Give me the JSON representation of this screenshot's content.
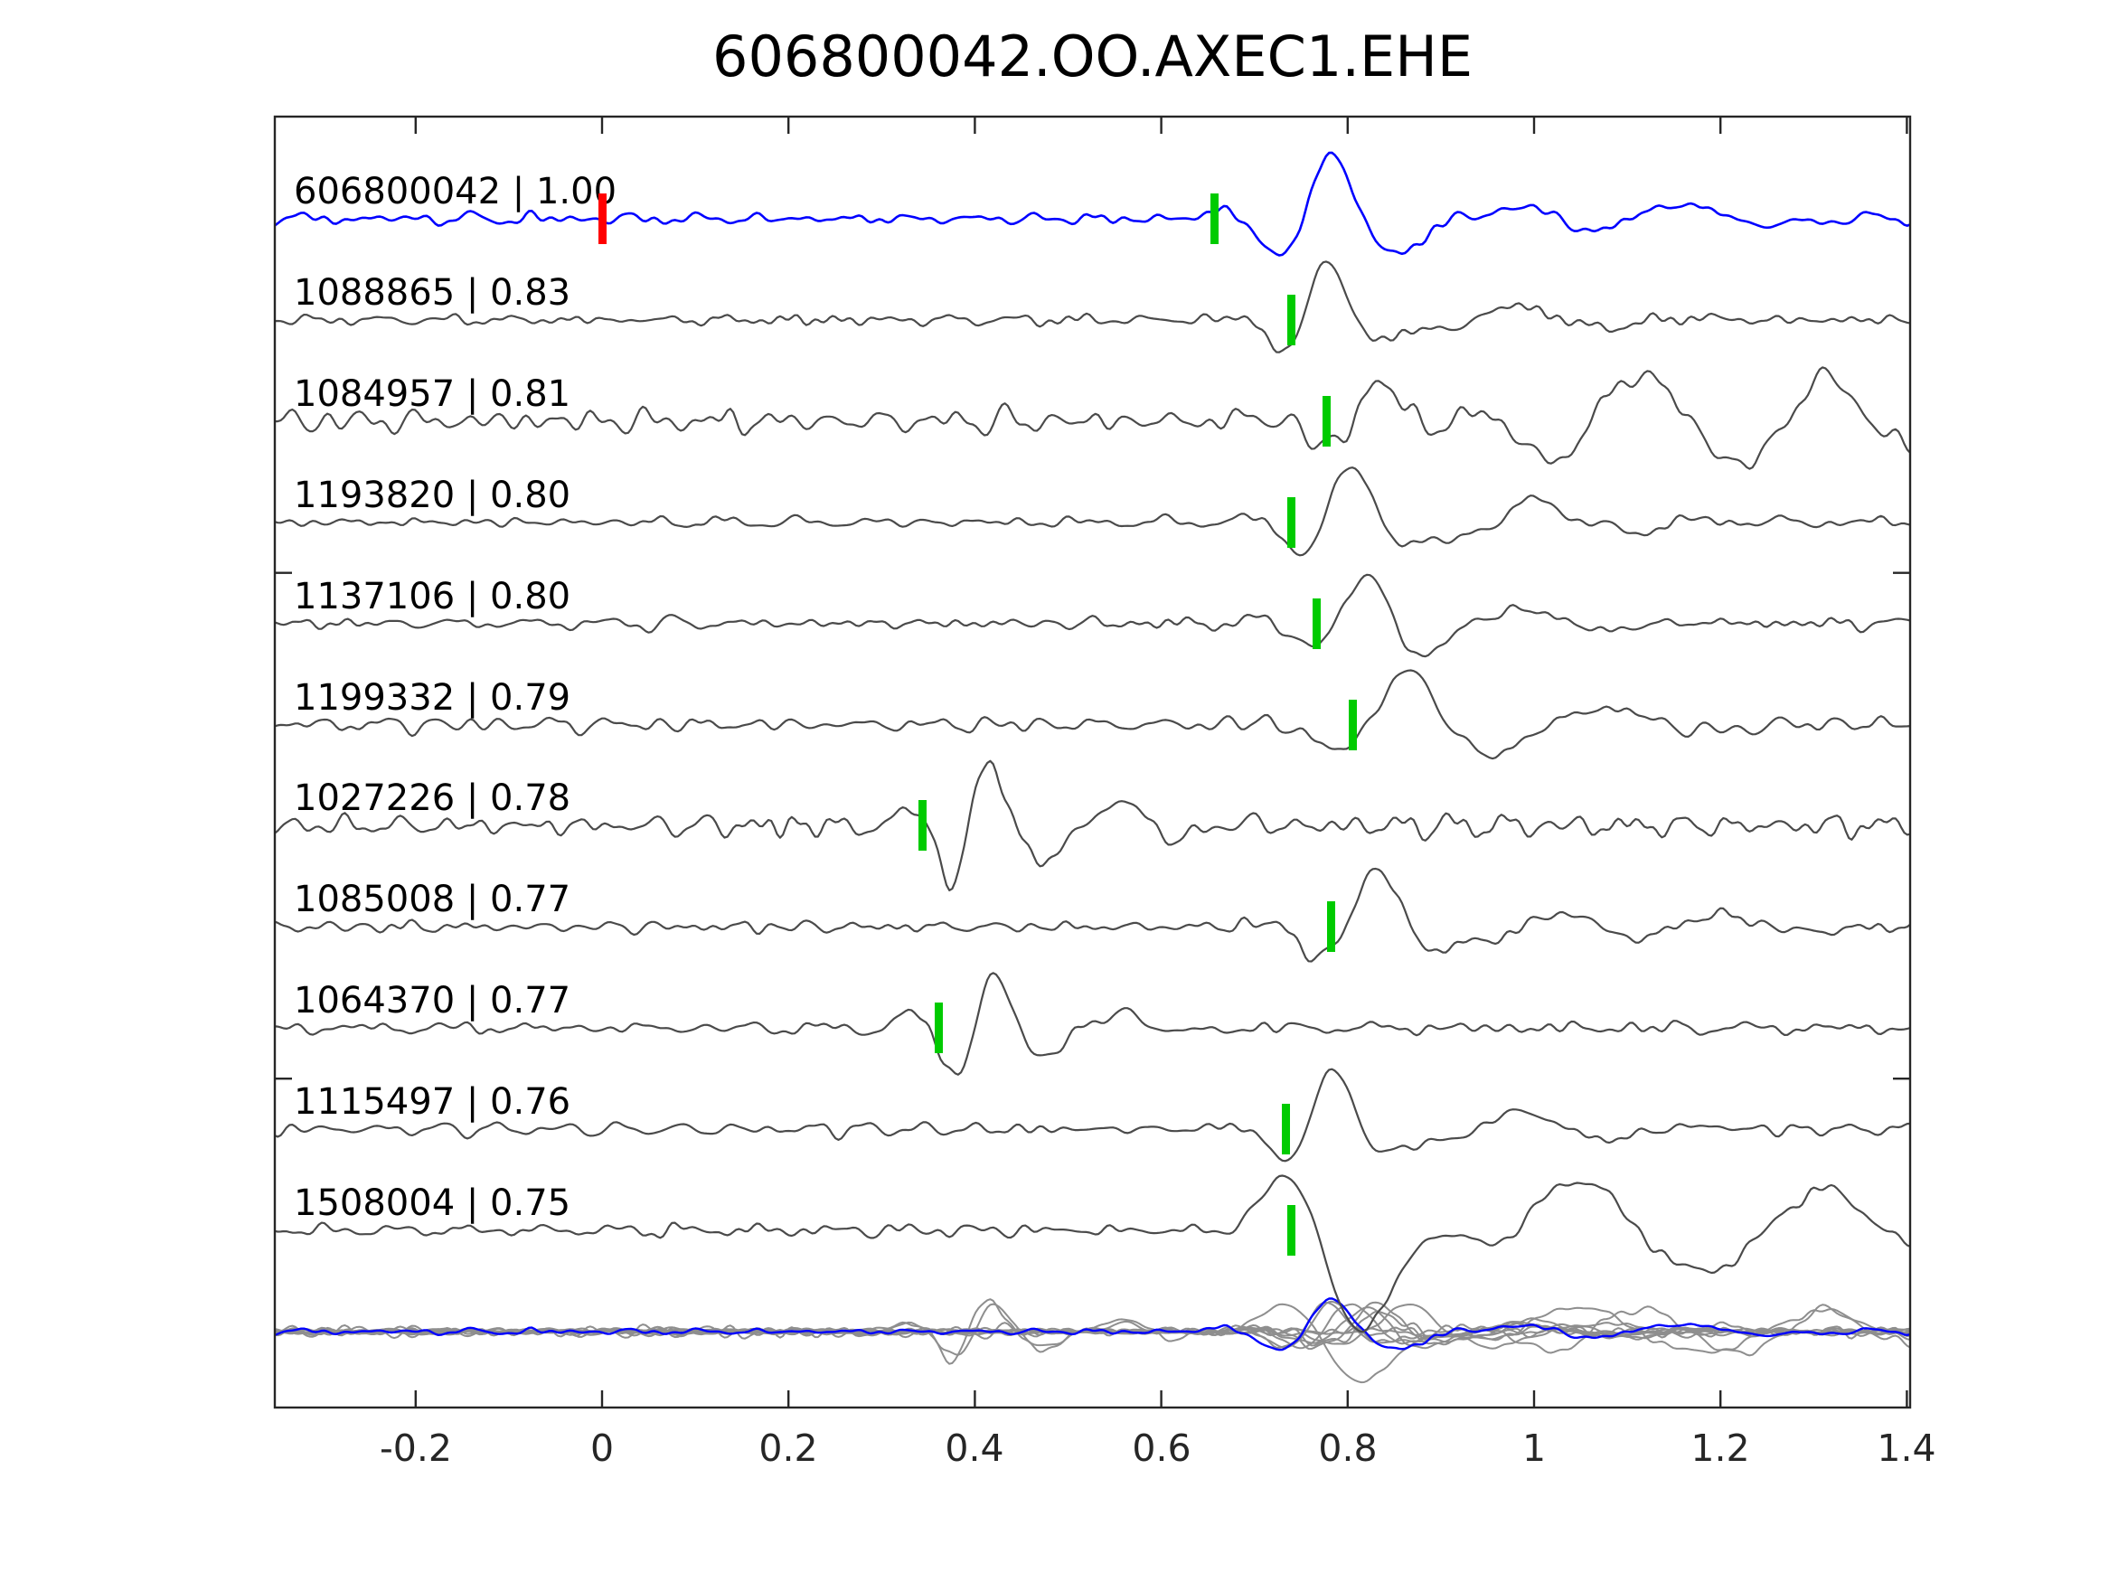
{
  "title": "606800042.OO.AXEC1.EHE",
  "colors": {
    "template_trace": "#0000ff",
    "match_trace": "#4a4a4a",
    "overlay_trace": "#8e8e8e",
    "pick_marker": "#00cb00",
    "origin_marker": "#ff0000",
    "axis": "#262626",
    "text": "#000000",
    "background": "#ffffff"
  },
  "axis": {
    "x_tick_labels": [
      "-0.2",
      "0",
      "0.2",
      "0.4",
      "0.6",
      "0.8",
      "1",
      "1.2",
      "1.4"
    ],
    "x_tick_values": [
      -0.2,
      0,
      0.2,
      0.4,
      0.6,
      0.8,
      1,
      1.2,
      1.4
    ],
    "x_min": -0.351,
    "x_max": 1.404,
    "y_side_tick_rows": [
      3.5,
      8.5
    ],
    "grid": false
  },
  "chart_data": {
    "type": "line",
    "title": "606800042.OO.AXEC1.EHE",
    "xlabel": "",
    "ylabel": "",
    "x_range": [
      -0.351,
      1.404
    ],
    "legend": "none",
    "description": "Seismic template-matching plot: template trace (blue) and 10 matched event traces (gray), each labeled 'event_id | correlation'. Green bars mark pick times, red bar marks template origin time 0. Bottom row overlays all traces.",
    "traces": [
      {
        "label": "606800042 | 1.00",
        "event_id": "606800042",
        "correlation": "1.00",
        "pick_time": 0.657,
        "origin_time": 0.0,
        "is_template": true,
        "seed": 101,
        "noise_amp": 7,
        "packets": [
          {
            "t0": 0.785,
            "amp": 63,
            "freq": 7.5,
            "sigma": 0.065,
            "phase": 1.57
          },
          {
            "t0": 0.96,
            "amp": 20,
            "freq": 4.5,
            "sigma": 0.1,
            "phase": 0.5
          },
          {
            "t0": 1.12,
            "amp": 18,
            "freq": 4.0,
            "sigma": 0.1,
            "phase": 0.8
          }
        ]
      },
      {
        "label": "1088865 | 0.83",
        "event_id": "1088865",
        "correlation": "0.83",
        "pick_time": 0.74,
        "is_template": false,
        "seed": 102,
        "noise_amp": 6,
        "packets": [
          {
            "t0": 0.775,
            "amp": 58,
            "freq": 9.0,
            "sigma": 0.045,
            "phase": 1.3
          },
          {
            "t0": 0.94,
            "amp": 16,
            "freq": 5.0,
            "sigma": 0.12,
            "phase": 0.2
          }
        ]
      },
      {
        "label": "1084957 | 0.81",
        "event_id": "1084957",
        "correlation": "0.81",
        "pick_time": 0.777,
        "is_template": false,
        "seed": 103,
        "noise_amp": 14,
        "packets": [
          {
            "t0": 0.83,
            "amp": 42,
            "freq": 7.0,
            "sigma": 0.06,
            "phase": 1.2
          },
          {
            "t0": 1.07,
            "amp": 50,
            "freq": 5.0,
            "sigma": 0.1,
            "phase": 0.3
          },
          {
            "t0": 1.3,
            "amp": 45,
            "freq": 5.5,
            "sigma": 0.1,
            "phase": 1.0
          }
        ]
      },
      {
        "label": "1193820 | 0.80",
        "event_id": "1193820",
        "correlation": "0.80",
        "pick_time": 0.74,
        "is_template": false,
        "seed": 104,
        "noise_amp": 7,
        "packets": [
          {
            "t0": 0.8,
            "amp": 55,
            "freq": 8.0,
            "sigma": 0.05,
            "phase": 1.3
          },
          {
            "t0": 0.97,
            "amp": 24,
            "freq": 5.0,
            "sigma": 0.1,
            "phase": 0.4
          }
        ]
      },
      {
        "label": "1137106 | 0.80",
        "event_id": "1137106",
        "correlation": "0.80",
        "pick_time": 0.767,
        "is_template": false,
        "seed": 105,
        "noise_amp": 7,
        "packets": [
          {
            "t0": 0.815,
            "amp": 52,
            "freq": 8.0,
            "sigma": 0.05,
            "phase": 1.3
          },
          {
            "t0": 0.95,
            "amp": 17,
            "freq": 5.0,
            "sigma": 0.1,
            "phase": 0.3
          }
        ]
      },
      {
        "label": "1199332 | 0.79",
        "event_id": "1199332",
        "correlation": "0.79",
        "pick_time": 0.806,
        "is_template": false,
        "seed": 106,
        "noise_amp": 9,
        "packets": [
          {
            "t0": 0.855,
            "amp": 52,
            "freq": 5.5,
            "sigma": 0.065,
            "phase": 1.1
          },
          {
            "t0": 1.02,
            "amp": 20,
            "freq": 4.0,
            "sigma": 0.12,
            "phase": 0.0
          }
        ]
      },
      {
        "label": "1027226 | 0.78",
        "event_id": "1027226",
        "correlation": "0.78",
        "pick_time": 0.344,
        "is_template": false,
        "seed": 107,
        "noise_amp": 13,
        "packets": [
          {
            "t0": 0.395,
            "amp": 68,
            "freq": 11.0,
            "sigma": 0.045,
            "phase": 0.0
          },
          {
            "t0": 0.52,
            "amp": 30,
            "freq": 7.0,
            "sigma": 0.08,
            "phase": 0.0
          }
        ]
      },
      {
        "label": "1085008 | 0.77",
        "event_id": "1085008",
        "correlation": "0.77",
        "pick_time": 0.782,
        "is_template": false,
        "seed": 108,
        "noise_amp": 7,
        "packets": [
          {
            "t0": 0.825,
            "amp": 55,
            "freq": 7.5,
            "sigma": 0.055,
            "phase": 1.3
          },
          {
            "t0": 1.0,
            "amp": 22,
            "freq": 5.0,
            "sigma": 0.12,
            "phase": 0.3
          },
          {
            "t0": 1.15,
            "amp": 14,
            "freq": 4.0,
            "sigma": 0.1,
            "phase": 0.7
          }
        ]
      },
      {
        "label": "1064370 | 0.77",
        "event_id": "1064370",
        "correlation": "0.77",
        "pick_time": 0.361,
        "is_template": false,
        "seed": 109,
        "noise_amp": 7,
        "packets": [
          {
            "t0": 0.4,
            "amp": 60,
            "freq": 10.0,
            "sigma": 0.045,
            "phase": 0.0
          },
          {
            "t0": 0.52,
            "amp": 18,
            "freq": 6.0,
            "sigma": 0.07,
            "phase": 0.0
          }
        ]
      },
      {
        "label": "1115497 | 0.76",
        "event_id": "1115497",
        "correlation": "0.76",
        "pick_time": 0.734,
        "is_template": false,
        "seed": 110,
        "noise_amp": 7,
        "packets": [
          {
            "t0": 0.78,
            "amp": 56,
            "freq": 8.5,
            "sigma": 0.05,
            "phase": 1.3
          },
          {
            "t0": 0.95,
            "amp": 20,
            "freq": 5.0,
            "sigma": 0.12,
            "phase": 0.4
          }
        ]
      },
      {
        "label": "1508004 | 0.75",
        "event_id": "1508004",
        "correlation": "0.75",
        "pick_time": 0.74,
        "is_template": false,
        "seed": 111,
        "noise_amp": 6,
        "packets": [
          {
            "t0": 0.745,
            "amp": 45,
            "freq": 6.0,
            "sigma": 0.05,
            "phase": 1.57
          },
          {
            "t0": 0.815,
            "amp": 105,
            "freq": 3.8,
            "sigma": 0.075,
            "phase": -1.57
          },
          {
            "t0": 1.02,
            "amp": 55,
            "freq": 4.0,
            "sigma": 0.12,
            "phase": 0.9
          },
          {
            "t0": 1.3,
            "amp": 42,
            "freq": 4.0,
            "sigma": 0.11,
            "phase": 1.2
          }
        ]
      }
    ],
    "overlay": {
      "scale": 0.5,
      "includes": "all traces superimposed, template drawn in blue on top"
    }
  }
}
